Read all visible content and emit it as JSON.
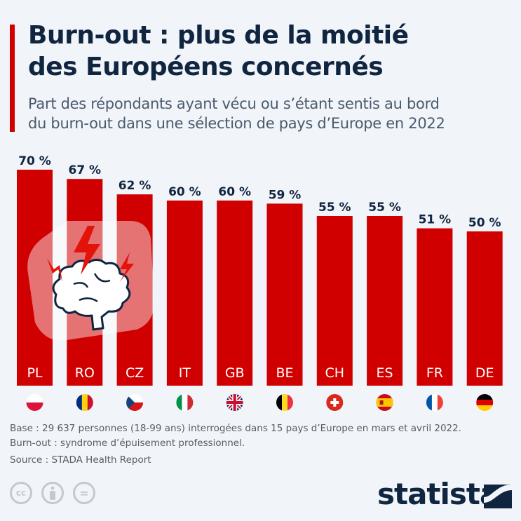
{
  "header": {
    "title_line1": "Burn-out : plus de la moitié",
    "title_line2": "des Européens concernés",
    "subtitle_line1": "Part des répondants ayant vécu ou s’étant sentis au bord",
    "subtitle_line2": "du burn-out dans une sélection de pays d’Europe en 2022"
  },
  "chart_data": {
    "type": "bar",
    "title": "Burn-out : plus de la moitié des Européens concernés",
    "categories": [
      "PL",
      "RO",
      "CZ",
      "IT",
      "GB",
      "BE",
      "CH",
      "ES",
      "FR",
      "DE"
    ],
    "values": [
      70,
      67,
      62,
      60,
      60,
      59,
      55,
      55,
      51,
      50
    ],
    "value_labels": [
      "70 %",
      "67 %",
      "62 %",
      "60 %",
      "60 %",
      "59 %",
      "55 %",
      "55 %",
      "51 %",
      "50 %"
    ],
    "unit": "%",
    "xlabel": "",
    "ylabel": "",
    "ylim": [
      0,
      70
    ],
    "grid": false,
    "bar_color": "#d00000"
  },
  "footer": {
    "base": "Base : 29 637 personnes (18-99 ans) interrogées dans 15 pays d’Europe en mars et avril 2022.",
    "definition": "Burn-out : syndrome d’épuisement professionnel.",
    "source": "Source : STADA Health Report",
    "cc_label": "cc",
    "eq_label": "=",
    "brand": "statista"
  },
  "icons": [
    "brain-lightning-icon",
    "cc-icon",
    "attribution-icon",
    "no-derivatives-icon",
    "statista-logo-icon"
  ]
}
